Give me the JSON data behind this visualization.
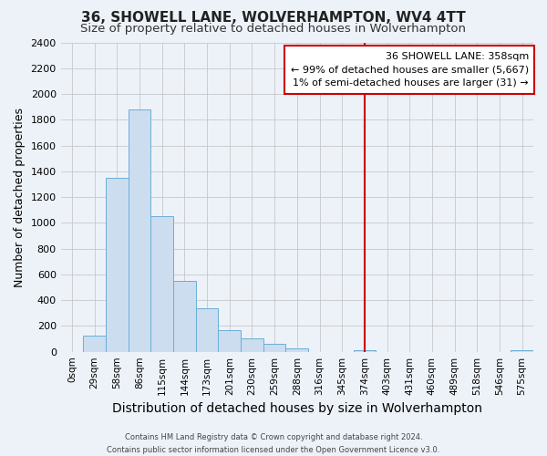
{
  "title": "36, SHOWELL LANE, WOLVERHAMPTON, WV4 4TT",
  "subtitle": "Size of property relative to detached houses in Wolverhampton",
  "xlabel": "Distribution of detached houses by size in Wolverhampton",
  "ylabel": "Number of detached properties",
  "footer_line1": "Contains HM Land Registry data © Crown copyright and database right 2024.",
  "footer_line2": "Contains public sector information licensed under the Open Government Licence v3.0.",
  "bin_labels": [
    "0sqm",
    "29sqm",
    "58sqm",
    "86sqm",
    "115sqm",
    "144sqm",
    "173sqm",
    "201sqm",
    "230sqm",
    "259sqm",
    "288sqm",
    "316sqm",
    "345sqm",
    "374sqm",
    "403sqm",
    "431sqm",
    "460sqm",
    "489sqm",
    "518sqm",
    "546sqm",
    "575sqm"
  ],
  "bar_heights": [
    0,
    125,
    1350,
    1880,
    1050,
    550,
    335,
    165,
    105,
    60,
    25,
    0,
    0,
    15,
    0,
    0,
    0,
    0,
    0,
    0,
    15
  ],
  "bar_color": "#ccddf0",
  "bar_edge_color": "#6aaed6",
  "grid_color": "#c8c8c8",
  "background_color": "#edf2f9",
  "axes_background": "#edf2f9",
  "vline_x": 13,
  "vline_color": "#cc0000",
  "annotation_title": "36 SHOWELL LANE: 358sqm",
  "annotation_line1": "← 99% of detached houses are smaller (5,667)",
  "annotation_line2": "1% of semi-detached houses are larger (31) →",
  "annotation_box_color": "#ffffff",
  "annotation_box_edge": "#cc0000",
  "ylim": [
    0,
    2400
  ],
  "yticks": [
    0,
    200,
    400,
    600,
    800,
    1000,
    1200,
    1400,
    1600,
    1800,
    2000,
    2200,
    2400
  ],
  "title_fontsize": 11,
  "subtitle_fontsize": 9.5,
  "ylabel_fontsize": 9,
  "xlabel_fontsize": 10,
  "tick_fontsize": 8,
  "xtick_fontsize": 7.5,
  "annotation_fontsize": 8,
  "footer_fontsize": 6
}
